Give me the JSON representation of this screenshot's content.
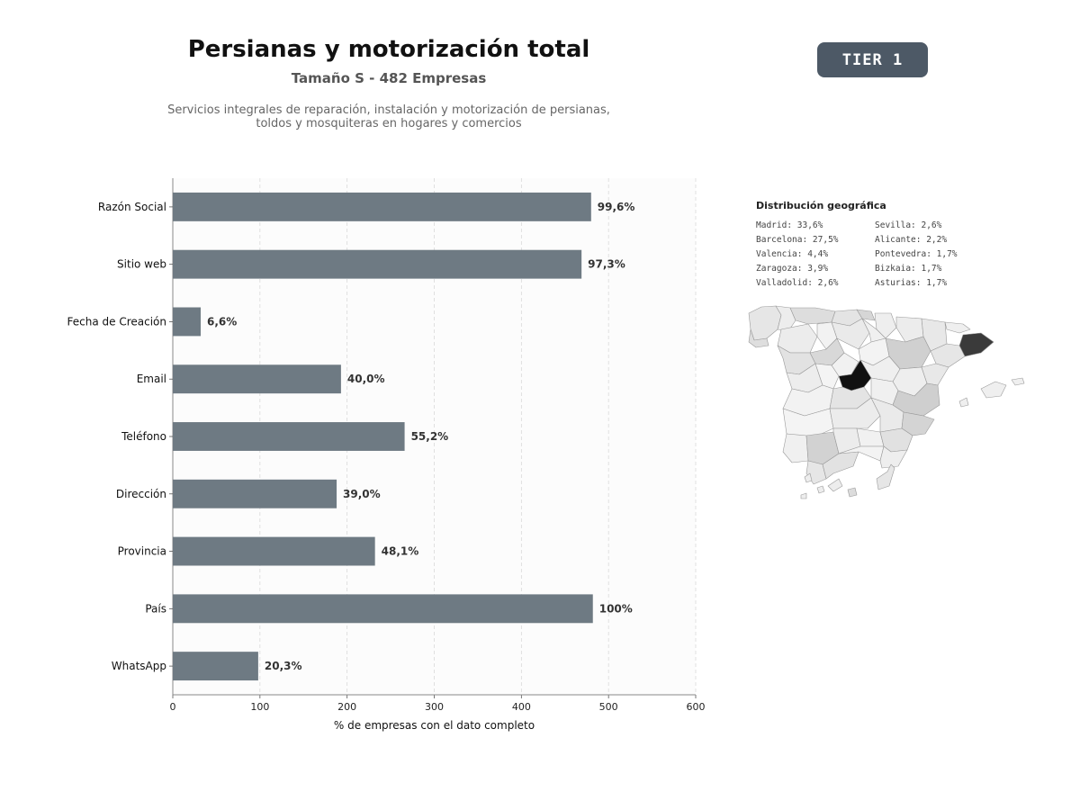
{
  "header": {
    "title": "Persianas y motorización total",
    "subtitle": "Tamaño S - 482 Empresas",
    "description": "Servicios integrales de reparación, instalación y motorización de persianas, toldos y mosquiteras en hogares y comercios"
  },
  "badge": {
    "label": "TIER 1"
  },
  "chart_data": {
    "type": "bar",
    "orientation": "horizontal",
    "categories": [
      "Razón Social",
      "Sitio web",
      "Fecha de Creación",
      "Email",
      "Teléfono",
      "Dirección",
      "Provincia",
      "País",
      "WhatsApp"
    ],
    "values": [
      480,
      469,
      32,
      193,
      266,
      188,
      232,
      482,
      98
    ],
    "data_labels": [
      "99,6%",
      "97,3%",
      "6,6%",
      "40,0%",
      "55,2%",
      "39,0%",
      "48,1%",
      "100%",
      "20,3%"
    ],
    "xlabel": "% de empresas con el dato completo",
    "ylabel": "",
    "xlim": [
      0,
      600
    ],
    "xticks": [
      "0",
      "100",
      "200",
      "300",
      "400",
      "500",
      "600"
    ],
    "grid": "vertical-dashed",
    "bar_color": "#6e7a83"
  },
  "geo": {
    "title": "Distribución geográfica",
    "items": [
      "Madrid: 33,6%",
      "Sevilla: 2,6%",
      "Barcelona: 27,5%",
      "Alicante: 2,2%",
      "Valencia: 4,4%",
      "Pontevedra: 1,7%",
      "Zaragoza: 3,9%",
      "Bizkaia: 1,7%",
      "Valladolid: 2,6%",
      "Asturias: 1,7%"
    ]
  },
  "colors": {
    "badge_bg": "#4d5966",
    "bar": "#6e7a83",
    "map_high": "#111111",
    "map_mid": "#3a3a3a",
    "map_low": "#dcdcdc",
    "map_base": "#f1f1f1"
  }
}
